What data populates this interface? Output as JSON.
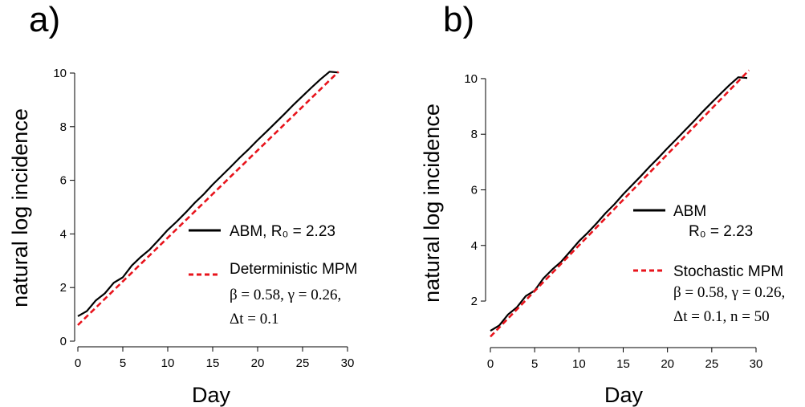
{
  "colors": {
    "abm": "#000000",
    "mpm": "#e8141c",
    "axis": "#000000"
  },
  "chart_data": [
    {
      "panel_label": "a)",
      "type": "line",
      "xlabel": "Day",
      "ylabel": "natural log incidence",
      "xlim": [
        0,
        30
      ],
      "ylim": [
        0,
        10
      ],
      "x_ticks": [
        0,
        5,
        10,
        15,
        20,
        25,
        30
      ],
      "x_tick_labels": [
        "0",
        "5",
        "10",
        "15",
        "20",
        "25",
        "30"
      ],
      "y_ticks": [
        0,
        2,
        4,
        6,
        8,
        10
      ],
      "y_tick_labels": [
        "0",
        "2",
        "4",
        "6",
        "8",
        "10"
      ],
      "grid": false,
      "legend_position": "right",
      "series": [
        {
          "name": "ABM, R₀ = 2.23",
          "style": "solid",
          "color": "#000000",
          "x": [
            0,
            1,
            2,
            3,
            4,
            5,
            6,
            7,
            8,
            9,
            10,
            11,
            12,
            13,
            14,
            15,
            16,
            17,
            18,
            19,
            20,
            21,
            22,
            23,
            24,
            25,
            26,
            27,
            28,
            29
          ],
          "y": [
            0.93,
            1.12,
            1.52,
            1.78,
            2.18,
            2.38,
            2.82,
            3.14,
            3.42,
            3.78,
            4.15,
            4.46,
            4.8,
            5.16,
            5.48,
            5.84,
            6.17,
            6.5,
            6.84,
            7.16,
            7.5,
            7.82,
            8.15,
            8.48,
            8.82,
            9.14,
            9.46,
            9.77,
            10.05,
            10.02
          ]
        },
        {
          "name": "Deterministic MPM",
          "params": [
            "β = 0.58, γ = 0.26,",
            "Δt = 0.1"
          ],
          "style": "dashed",
          "color": "#e8141c",
          "x": [
            0,
            29
          ],
          "y": [
            0.6,
            10.05
          ]
        }
      ]
    },
    {
      "panel_label": "b)",
      "type": "line",
      "xlabel": "Day",
      "ylabel": "natural log incidence",
      "xlim": [
        0,
        30
      ],
      "ylim": [
        0.5,
        10.2
      ],
      "x_ticks": [
        0,
        5,
        10,
        15,
        20,
        25,
        30
      ],
      "x_tick_labels": [
        "0",
        "5",
        "10",
        "15",
        "20",
        "25",
        "30"
      ],
      "y_ticks": [
        2,
        4,
        6,
        8,
        10
      ],
      "y_tick_labels": [
        "2",
        "4",
        "6",
        "8",
        "10"
      ],
      "grid": false,
      "legend_position": "right",
      "series": [
        {
          "name": "ABM",
          "name_line2": "R₀ = 2.23",
          "style": "solid",
          "color": "#000000",
          "x": [
            0,
            1,
            2,
            3,
            4,
            5,
            6,
            7,
            8,
            9,
            10,
            11,
            12,
            13,
            14,
            15,
            16,
            17,
            18,
            19,
            20,
            21,
            22,
            23,
            24,
            25,
            26,
            27,
            28,
            29
          ],
          "y": [
            0.93,
            1.12,
            1.52,
            1.78,
            2.18,
            2.38,
            2.82,
            3.14,
            3.42,
            3.78,
            4.15,
            4.46,
            4.8,
            5.16,
            5.48,
            5.84,
            6.17,
            6.5,
            6.84,
            7.16,
            7.5,
            7.82,
            8.15,
            8.48,
            8.82,
            9.14,
            9.46,
            9.77,
            10.05,
            10.02
          ]
        },
        {
          "name": "Stochastic MPM",
          "params": [
            "β = 0.58, γ = 0.26,",
            "Δt = 0.1, n = 50"
          ],
          "style": "dashed",
          "color": "#e8141c",
          "x": [
            0,
            29.2
          ],
          "y": [
            0.72,
            10.3
          ]
        }
      ]
    }
  ]
}
